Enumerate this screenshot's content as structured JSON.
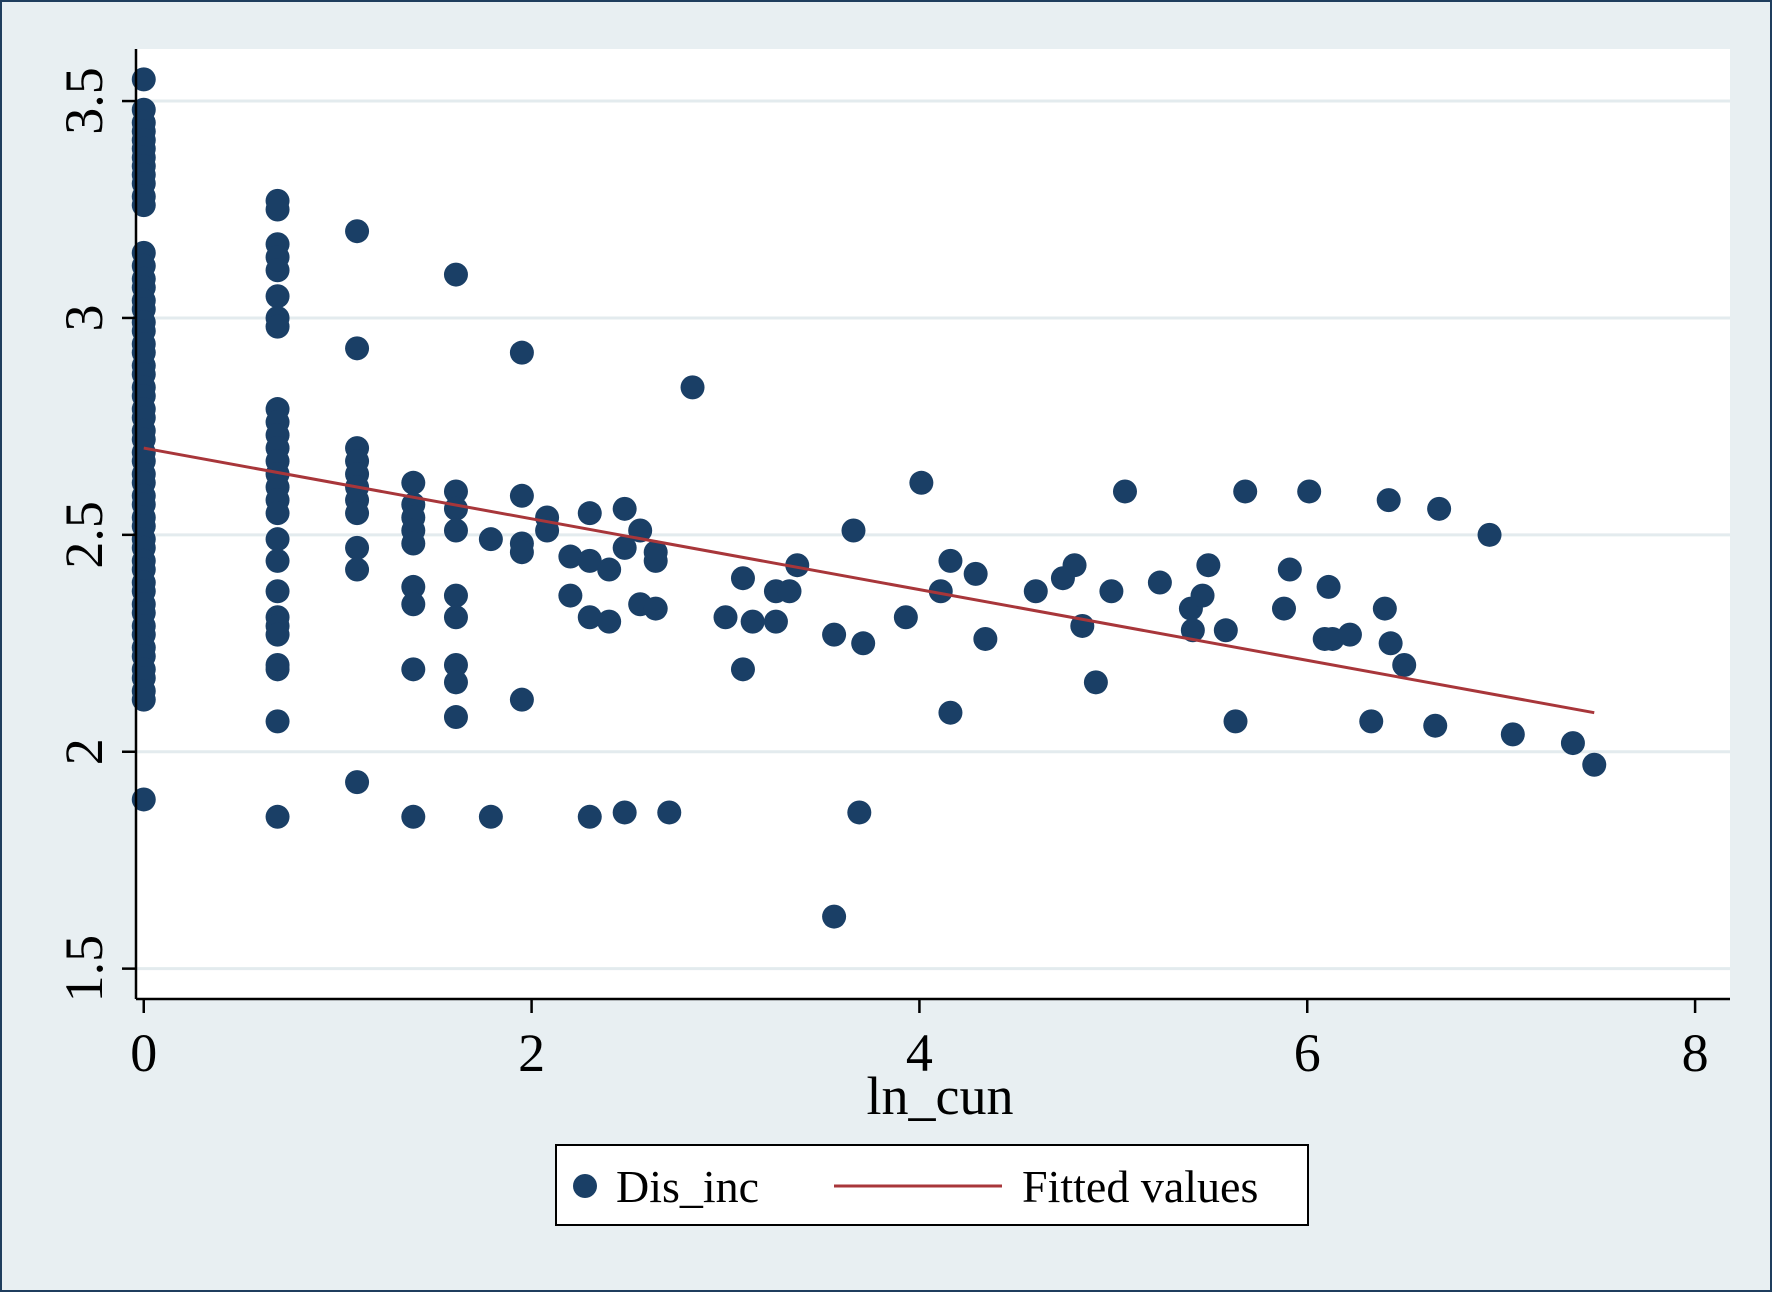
{
  "chart_data": {
    "type": "scatter",
    "title": "",
    "xlabel": "ln_cun",
    "ylabel": "",
    "xlim": [
      -0.04,
      8.18
    ],
    "ylim": [
      1.43,
      3.62
    ],
    "xticks": [
      0,
      2,
      4,
      6,
      8
    ],
    "yticks": [
      1.5,
      2,
      2.5,
      3,
      3.5
    ],
    "xtick_labels": [
      "0",
      "2",
      "4",
      "6",
      "8"
    ],
    "ytick_labels": [
      "1.5",
      "2",
      "2.5",
      "3",
      "3.5"
    ],
    "grid": "horizontal",
    "legend": {
      "position": "bottom",
      "entries": [
        "Dis_inc",
        "Fitted values"
      ]
    },
    "colors": {
      "points": "#1a3f66",
      "fit_line": "#a8363a",
      "plot_bg": "#ffffff",
      "outer_bg": "#e8eff2",
      "grid": "#e3ebee"
    },
    "series": [
      {
        "name": "Dis_inc",
        "kind": "scatter",
        "points": [
          [
            0,
            3.55
          ],
          [
            0,
            3.48
          ],
          [
            0,
            3.45
          ],
          [
            0,
            3.43
          ],
          [
            0,
            3.41
          ],
          [
            0,
            3.39
          ],
          [
            0,
            3.37
          ],
          [
            0,
            3.35
          ],
          [
            0,
            3.33
          ],
          [
            0,
            3.31
          ],
          [
            0,
            3.28
          ],
          [
            0,
            3.26
          ],
          [
            0,
            3.15
          ],
          [
            0,
            3.12
          ],
          [
            0,
            3.09
          ],
          [
            0,
            3.07
          ],
          [
            0,
            3.04
          ],
          [
            0,
            3.02
          ],
          [
            0,
            2.99
          ],
          [
            0,
            2.97
          ],
          [
            0,
            2.94
          ],
          [
            0,
            2.92
          ],
          [
            0,
            2.89
          ],
          [
            0,
            2.87
          ],
          [
            0,
            2.84
          ],
          [
            0,
            2.82
          ],
          [
            0,
            2.79
          ],
          [
            0,
            2.77
          ],
          [
            0,
            2.74
          ],
          [
            0,
            2.72
          ],
          [
            0,
            2.69
          ],
          [
            0,
            2.67
          ],
          [
            0,
            2.64
          ],
          [
            0,
            2.62
          ],
          [
            0,
            2.59
          ],
          [
            0,
            2.57
          ],
          [
            0,
            2.54
          ],
          [
            0,
            2.52
          ],
          [
            0,
            2.49
          ],
          [
            0,
            2.47
          ],
          [
            0,
            2.44
          ],
          [
            0,
            2.42
          ],
          [
            0,
            2.39
          ],
          [
            0,
            2.37
          ],
          [
            0,
            2.34
          ],
          [
            0,
            2.32
          ],
          [
            0,
            2.29
          ],
          [
            0,
            2.27
          ],
          [
            0,
            2.24
          ],
          [
            0,
            2.22
          ],
          [
            0,
            2.19
          ],
          [
            0,
            2.17
          ],
          [
            0,
            2.14
          ],
          [
            0,
            2.12
          ],
          [
            0,
            1.89
          ],
          [
            0.69,
            3.27
          ],
          [
            0.69,
            3.25
          ],
          [
            0.69,
            3.17
          ],
          [
            0.69,
            3.14
          ],
          [
            0.69,
            3.11
          ],
          [
            0.69,
            3.05
          ],
          [
            0.69,
            3.0
          ],
          [
            0.69,
            2.98
          ],
          [
            0.69,
            2.79
          ],
          [
            0.69,
            2.76
          ],
          [
            0.69,
            2.73
          ],
          [
            0.69,
            2.7
          ],
          [
            0.69,
            2.67
          ],
          [
            0.69,
            2.64
          ],
          [
            0.69,
            2.61
          ],
          [
            0.69,
            2.58
          ],
          [
            0.69,
            2.55
          ],
          [
            0.69,
            2.49
          ],
          [
            0.69,
            2.44
          ],
          [
            0.69,
            2.37
          ],
          [
            0.69,
            2.31
          ],
          [
            0.69,
            2.29
          ],
          [
            0.69,
            2.27
          ],
          [
            0.69,
            2.2
          ],
          [
            0.69,
            2.19
          ],
          [
            0.69,
            2.07
          ],
          [
            0.69,
            1.85
          ],
          [
            1.1,
            3.2
          ],
          [
            1.1,
            2.93
          ],
          [
            1.1,
            2.7
          ],
          [
            1.1,
            2.67
          ],
          [
            1.1,
            2.64
          ],
          [
            1.1,
            2.61
          ],
          [
            1.1,
            2.58
          ],
          [
            1.1,
            2.55
          ],
          [
            1.1,
            2.47
          ],
          [
            1.1,
            2.42
          ],
          [
            1.1,
            1.93
          ],
          [
            1.39,
            2.62
          ],
          [
            1.39,
            2.57
          ],
          [
            1.39,
            2.54
          ],
          [
            1.39,
            2.51
          ],
          [
            1.39,
            2.48
          ],
          [
            1.39,
            2.38
          ],
          [
            1.39,
            2.34
          ],
          [
            1.39,
            2.19
          ],
          [
            1.39,
            1.85
          ],
          [
            1.61,
            3.1
          ],
          [
            1.61,
            2.6
          ],
          [
            1.61,
            2.56
          ],
          [
            1.61,
            2.51
          ],
          [
            1.61,
            2.36
          ],
          [
            1.61,
            2.31
          ],
          [
            1.61,
            2.2
          ],
          [
            1.61,
            2.16
          ],
          [
            1.61,
            2.08
          ],
          [
            1.79,
            2.49
          ],
          [
            1.79,
            1.85
          ],
          [
            1.95,
            2.92
          ],
          [
            1.95,
            2.59
          ],
          [
            1.95,
            2.48
          ],
          [
            1.95,
            2.46
          ],
          [
            1.95,
            2.12
          ],
          [
            2.08,
            2.54
          ],
          [
            2.08,
            2.51
          ],
          [
            2.2,
            2.45
          ],
          [
            2.2,
            2.36
          ],
          [
            2.3,
            2.55
          ],
          [
            2.3,
            2.44
          ],
          [
            2.3,
            2.31
          ],
          [
            2.3,
            1.85
          ],
          [
            2.4,
            2.42
          ],
          [
            2.4,
            2.3
          ],
          [
            2.48,
            2.56
          ],
          [
            2.48,
            2.47
          ],
          [
            2.48,
            1.86
          ],
          [
            2.56,
            2.51
          ],
          [
            2.56,
            2.34
          ],
          [
            2.64,
            2.46
          ],
          [
            2.64,
            2.44
          ],
          [
            2.64,
            2.33
          ],
          [
            2.71,
            1.86
          ],
          [
            2.83,
            2.84
          ],
          [
            3.0,
            2.31
          ],
          [
            3.09,
            2.4
          ],
          [
            3.09,
            2.19
          ],
          [
            3.14,
            2.3
          ],
          [
            3.26,
            2.37
          ],
          [
            3.26,
            2.3
          ],
          [
            3.33,
            2.37
          ],
          [
            3.37,
            2.43
          ],
          [
            3.56,
            2.27
          ],
          [
            3.56,
            1.62
          ],
          [
            3.66,
            2.51
          ],
          [
            3.69,
            1.86
          ],
          [
            3.71,
            2.25
          ],
          [
            3.93,
            2.31
          ],
          [
            4.01,
            2.62
          ],
          [
            4.11,
            2.37
          ],
          [
            4.16,
            2.44
          ],
          [
            4.16,
            2.09
          ],
          [
            4.29,
            2.41
          ],
          [
            4.34,
            2.26
          ],
          [
            4.6,
            2.37
          ],
          [
            4.74,
            2.4
          ],
          [
            4.8,
            2.43
          ],
          [
            4.84,
            2.29
          ],
          [
            4.91,
            2.16
          ],
          [
            4.99,
            2.37
          ],
          [
            5.06,
            2.6
          ],
          [
            5.24,
            2.39
          ],
          [
            5.4,
            2.33
          ],
          [
            5.41,
            2.28
          ],
          [
            5.46,
            2.36
          ],
          [
            5.49,
            2.43
          ],
          [
            5.58,
            2.28
          ],
          [
            5.63,
            2.07
          ],
          [
            5.68,
            2.6
          ],
          [
            5.88,
            2.33
          ],
          [
            5.91,
            2.42
          ],
          [
            6.01,
            2.6
          ],
          [
            6.09,
            2.26
          ],
          [
            6.11,
            2.38
          ],
          [
            6.13,
            2.26
          ],
          [
            6.22,
            2.27
          ],
          [
            6.33,
            2.07
          ],
          [
            6.4,
            2.33
          ],
          [
            6.42,
            2.58
          ],
          [
            6.43,
            2.25
          ],
          [
            6.5,
            2.2
          ],
          [
            6.66,
            2.06
          ],
          [
            6.68,
            2.56
          ],
          [
            6.94,
            2.5
          ],
          [
            7.06,
            2.04
          ],
          [
            7.37,
            2.02
          ],
          [
            7.48,
            1.97
          ]
        ]
      },
      {
        "name": "Fitted values",
        "kind": "line",
        "points": [
          [
            0,
            2.7
          ],
          [
            7.48,
            2.09
          ]
        ]
      }
    ]
  }
}
